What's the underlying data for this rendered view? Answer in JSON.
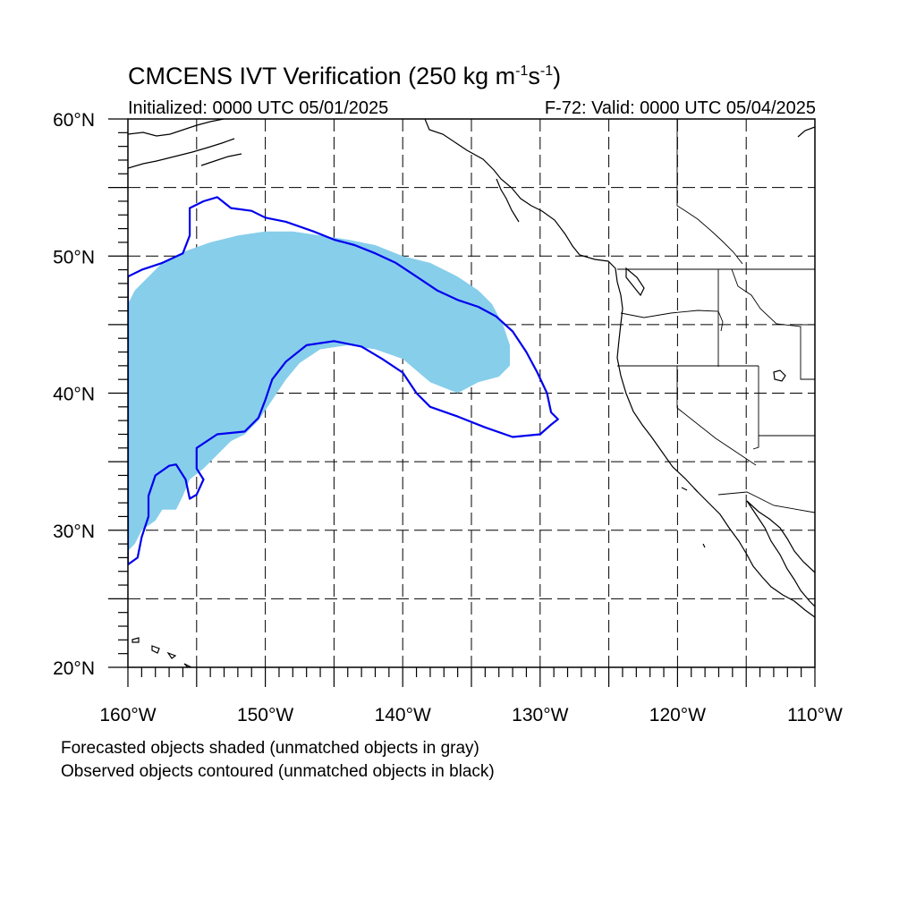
{
  "header": {
    "title_main": "CMCENS IVT Verification (250 kg m",
    "title_exp1": "-1",
    "title_mid": "s",
    "title_exp2": "-1",
    "title_end": ")",
    "initialized": "Initialized: 0000 UTC 05/01/2025",
    "valid": "F-72: Valid: 0000 UTC 05/04/2025"
  },
  "axes": {
    "lon_labels": [
      "160°W",
      "150°W",
      "140°W",
      "130°W",
      "120°W",
      "110°W"
    ],
    "lat_labels": [
      "20°N",
      "30°N",
      "40°N",
      "50°N",
      "60°N"
    ],
    "lon_range": [
      -160,
      -110
    ],
    "lat_range": [
      20,
      60
    ],
    "grid": "dashed"
  },
  "legend": {
    "line1": "Forecasted objects shaded (unmatched objects in gray)",
    "line2": "Observed objects contoured (unmatched objects in black)"
  },
  "colors": {
    "forecast_fill": "#87ceeb",
    "observed_contour": "#0000ee",
    "coastline": "#000000",
    "grid": "#000000"
  },
  "forecast_object": [
    [
      -160,
      46.5
    ],
    [
      -159.5,
      47.5
    ],
    [
      -158.5,
      48.5
    ],
    [
      -157.5,
      49.5
    ],
    [
      -156,
      50.3
    ],
    [
      -154,
      51
    ],
    [
      -152,
      51.5
    ],
    [
      -150,
      51.8
    ],
    [
      -148,
      51.8
    ],
    [
      -146,
      51.5
    ],
    [
      -144,
      51.2
    ],
    [
      -142,
      50.8
    ],
    [
      -140,
      50
    ],
    [
      -138,
      49.5
    ],
    [
      -136,
      48.5
    ],
    [
      -134.5,
      47.5
    ],
    [
      -133.5,
      46.5
    ],
    [
      -132.7,
      45
    ],
    [
      -132.2,
      43.5
    ],
    [
      -132.2,
      42
    ],
    [
      -133,
      41.2
    ],
    [
      -134.5,
      40.8
    ],
    [
      -136,
      40
    ],
    [
      -138,
      40.8
    ],
    [
      -140,
      42.5
    ],
    [
      -142,
      43.2
    ],
    [
      -144,
      43.5
    ],
    [
      -146,
      43.2
    ],
    [
      -147.5,
      42.2
    ],
    [
      -148.5,
      41
    ],
    [
      -149.5,
      39.5
    ],
    [
      -150.5,
      38
    ],
    [
      -151.5,
      37
    ],
    [
      -152.5,
      36.5
    ],
    [
      -153.5,
      35.5
    ],
    [
      -154.5,
      34.5
    ],
    [
      -155.5,
      33.7
    ],
    [
      -156,
      32.5
    ],
    [
      -156.5,
      31.5
    ],
    [
      -157.5,
      31.5
    ],
    [
      -158,
      30.7
    ],
    [
      -159,
      30
    ],
    [
      -159.5,
      29
    ],
    [
      -160,
      28.5
    ]
  ],
  "observed_object": [
    [
      -160,
      48.5
    ],
    [
      -159,
      49
    ],
    [
      -157.5,
      49.5
    ],
    [
      -156,
      50.2
    ],
    [
      -155.5,
      51.5
    ],
    [
      -155.5,
      53.5
    ],
    [
      -154.5,
      54
    ],
    [
      -153.5,
      54.3
    ],
    [
      -152.5,
      53.5
    ],
    [
      -151,
      53.3
    ],
    [
      -150,
      52.8
    ],
    [
      -148.5,
      52.5
    ],
    [
      -146.5,
      51.8
    ],
    [
      -145,
      51.2
    ],
    [
      -143.5,
      50.8
    ],
    [
      -142,
      50.2
    ],
    [
      -140.5,
      49.5
    ],
    [
      -139,
      48.5
    ],
    [
      -137.5,
      47.5
    ],
    [
      -136,
      46.8
    ],
    [
      -134.5,
      46.3
    ],
    [
      -133.2,
      45.6
    ],
    [
      -132,
      44.5
    ],
    [
      -131,
      43
    ],
    [
      -130.2,
      41.5
    ],
    [
      -129.5,
      40
    ],
    [
      -129.2,
      38.6
    ],
    [
      -128.7,
      38.1
    ],
    [
      -129.2,
      37.7
    ],
    [
      -130,
      37
    ],
    [
      -132,
      36.8
    ],
    [
      -134,
      37.5
    ],
    [
      -136,
      38.3
    ],
    [
      -138,
      39
    ],
    [
      -139,
      40
    ],
    [
      -140,
      41.5
    ],
    [
      -141.5,
      42.5
    ],
    [
      -143,
      43.4
    ],
    [
      -145,
      43.8
    ],
    [
      -147,
      43.5
    ],
    [
      -148.5,
      42.3
    ],
    [
      -149.5,
      41
    ],
    [
      -150,
      39.5
    ],
    [
      -150.5,
      38.2
    ],
    [
      -151.5,
      37.2
    ],
    [
      -153.5,
      37
    ],
    [
      -155,
      36
    ],
    [
      -155,
      34.5
    ],
    [
      -154.5,
      33.7
    ],
    [
      -155,
      32.6
    ],
    [
      -155.5,
      32.3
    ],
    [
      -155.8,
      33.7
    ],
    [
      -156.5,
      34.8
    ],
    [
      -157,
      34.7
    ],
    [
      -158,
      34
    ],
    [
      -158.5,
      32.5
    ],
    [
      -158.5,
      31
    ],
    [
      -159,
      29.5
    ],
    [
      -159.3,
      28
    ],
    [
      -160,
      27.5
    ]
  ]
}
